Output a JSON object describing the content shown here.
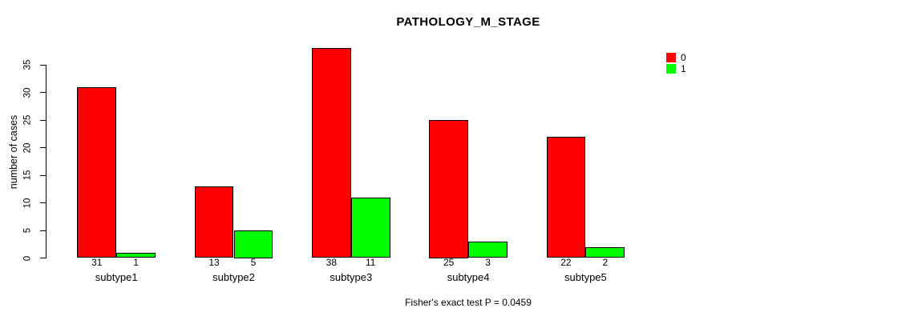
{
  "chart_data": {
    "type": "bar",
    "title": "PATHOLOGY_M_STAGE",
    "ylabel": "number of cases",
    "xlabel": "",
    "categories": [
      "subtype1",
      "subtype2",
      "subtype3",
      "subtype4",
      "subtype5"
    ],
    "series": [
      {
        "name": "0",
        "color": "#FF0000",
        "values": [
          31,
          13,
          38,
          25,
          22
        ]
      },
      {
        "name": "1",
        "color": "#00FF00",
        "values": [
          1,
          5,
          11,
          3,
          2
        ]
      }
    ],
    "yticks": [
      0,
      5,
      10,
      15,
      20,
      25,
      30,
      35
    ],
    "ylim": [
      0,
      38
    ],
    "grid": false,
    "bar_value_labels_shown": true,
    "legend_position": "top-right",
    "annotation": "Fisher's exact test P = 0.0459",
    "background_color": "#FFFFFF",
    "axis_color": "#000000"
  }
}
